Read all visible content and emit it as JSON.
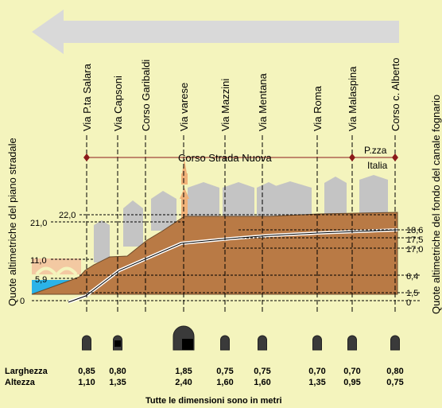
{
  "streets": [
    {
      "name": "Via P.ta Salara"
    },
    {
      "name": "Via Capsoni"
    },
    {
      "name": "Corso Garibaldi"
    },
    {
      "name": "Via varese"
    },
    {
      "name": "Via Mazzini"
    },
    {
      "name": "Via Mentana"
    },
    {
      "name": "Via Roma"
    },
    {
      "name": "Via Malaspina"
    },
    {
      "name": "Corso c. Alberto"
    }
  ],
  "corso_label": "Corso Strada Nuova",
  "piazza_label_1": "P.zza",
  "piazza_label_2": "Italia",
  "left_axis_title": "Quote altimetriche del piano stradale",
  "right_axis_title": "Quote altimetriche del fondo del canale fognario",
  "left_ticks": [
    "22,0",
    "21,0",
    "11,0",
    "5,9",
    "0"
  ],
  "right_ticks": [
    "18,6",
    "17,5",
    "17,0",
    "6,4",
    "1,5",
    "0"
  ],
  "rows": {
    "width_label": "Larghezza",
    "height_label": "Altezza",
    "widths": [
      "0,85",
      "0,80",
      "1,85",
      "0,75",
      "0,75",
      "0,70",
      "0,70",
      "0,80"
    ],
    "heights": [
      "1,10",
      "1,35",
      "2,40",
      "1,60",
      "1,60",
      "1,35",
      "0,95",
      "0,75"
    ]
  },
  "footer": "Tutte le dimensioni sono in metri",
  "colors": {
    "background": "#f4f4bd",
    "terrain": "#b97a45",
    "buildings": "#c4c4c4",
    "arrow": "#d9d9d9",
    "water": "#2bb3e8",
    "marker": "#8b1a1a"
  }
}
